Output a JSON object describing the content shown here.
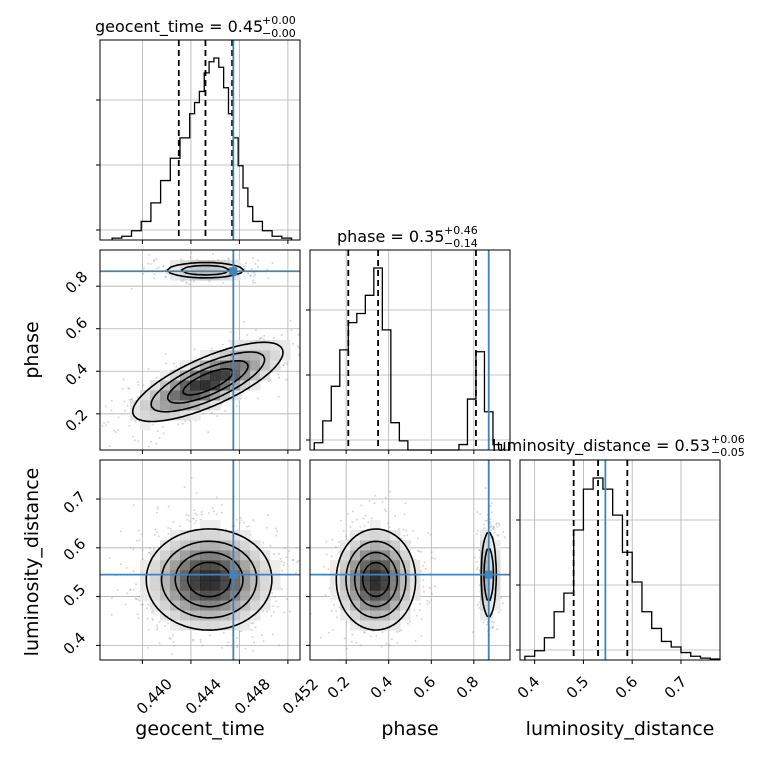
{
  "chart_data": {
    "type": "corner",
    "parameters": [
      "geocent_time",
      "phase",
      "luminosity_distance"
    ],
    "truth_color": "#4682b4",
    "truths": {
      "geocent_time": 0.4475,
      "phase": 0.87,
      "luminosity_distance": 0.545
    },
    "axis_ranges": {
      "geocent_time": [
        0.4365,
        0.453
      ],
      "phase": [
        0.03,
        0.97
      ],
      "luminosity_distance": [
        0.37,
        0.78
      ]
    },
    "grid": true,
    "titles": {
      "geocent_time": {
        "label": "geocent_time = 0.45",
        "plus": "+0.00",
        "minus": "−0.00"
      },
      "phase": {
        "label": "phase = 0.35",
        "plus": "+0.46",
        "minus": "−0.14"
      },
      "luminosity_distance": {
        "label": "luminosity_distance = 0.53",
        "plus": "+0.06",
        "minus": "−0.05"
      }
    },
    "ticks": {
      "geocent_time": {
        "values": [
          0.44,
          0.444,
          0.448,
          0.452
        ],
        "labels": [
          "0.440",
          "0.444",
          "0.448",
          "0.452"
        ]
      },
      "phase_x": {
        "values": [
          0.2,
          0.4,
          0.6,
          0.8
        ],
        "labels": [
          "0.2",
          "0.4",
          "0.6",
          "0.8"
        ]
      },
      "phase_y": {
        "values": [
          0.2,
          0.4,
          0.6,
          0.8
        ],
        "labels": [
          "0.2",
          "0.4",
          "0.6",
          "0.8"
        ]
      },
      "luminosity_distance_x": {
        "values": [
          0.4,
          0.5,
          0.6,
          0.7
        ],
        "labels": [
          "0.4",
          "0.5",
          "0.6",
          "0.7"
        ]
      },
      "luminosity_distance_y": {
        "values": [
          0.4,
          0.5,
          0.6,
          0.7
        ],
        "labels": [
          "0.4",
          "0.5",
          "0.6",
          "0.7"
        ]
      }
    },
    "quantiles": {
      "geocent_time": [
        0.443,
        0.4452,
        0.4474
      ],
      "phase": [
        0.21,
        0.35,
        0.81
      ],
      "luminosity_distance": [
        0.48,
        0.53,
        0.59
      ]
    },
    "histograms": {
      "geocent_time": {
        "edges": [
          0.4375,
          0.4383,
          0.4391,
          0.4399,
          0.4407,
          0.4415,
          0.4423,
          0.4431,
          0.4439,
          0.4443,
          0.4447,
          0.4451,
          0.4455,
          0.4459,
          0.4463,
          0.4467,
          0.4471,
          0.4475,
          0.4479,
          0.4483,
          0.4487,
          0.4491,
          0.4499,
          0.4507,
          0.4515,
          0.4523
        ],
        "counts": [
          0.01,
          0.02,
          0.05,
          0.1,
          0.2,
          0.32,
          0.44,
          0.55,
          0.68,
          0.74,
          0.8,
          0.9,
          0.96,
          0.98,
          0.93,
          0.82,
          0.68,
          0.55,
          0.4,
          0.28,
          0.18,
          0.1,
          0.05,
          0.02,
          0.01
        ]
      },
      "phase": {
        "edges": [
          0.05,
          0.09,
          0.13,
          0.17,
          0.21,
          0.25,
          0.29,
          0.33,
          0.37,
          0.41,
          0.45,
          0.49,
          0.53,
          0.57,
          0.61,
          0.65,
          0.69,
          0.73,
          0.77,
          0.81,
          0.85,
          0.89,
          0.93
        ],
        "counts": [
          0.04,
          0.16,
          0.35,
          0.55,
          0.7,
          0.75,
          0.85,
          1.0,
          0.66,
          0.15,
          0.05,
          0.0,
          0.0,
          0.0,
          0.0,
          0.0,
          0.0,
          0.03,
          0.28,
          0.54,
          0.21,
          0.03
        ]
      },
      "luminosity_distance": {
        "edges": [
          0.38,
          0.4,
          0.42,
          0.44,
          0.46,
          0.48,
          0.5,
          0.52,
          0.54,
          0.56,
          0.58,
          0.6,
          0.62,
          0.64,
          0.66,
          0.68,
          0.7,
          0.72,
          0.74,
          0.76,
          0.78
        ],
        "counts": [
          0.02,
          0.05,
          0.12,
          0.26,
          0.36,
          0.7,
          0.92,
          0.98,
          0.92,
          0.78,
          0.58,
          0.42,
          0.26,
          0.17,
          0.1,
          0.07,
          0.04,
          0.02,
          0.01,
          0.005
        ]
      }
    },
    "density": {
      "phase_vs_geocent_time": [
        {
          "x": 0.4452,
          "y": 0.875,
          "sx": 0.0018,
          "sy": 0.02,
          "w": 0.35
        },
        {
          "x": 0.4454,
          "y": 0.35,
          "sx": 0.003,
          "sy": 0.09,
          "w": 0.65,
          "rho": 0.75
        }
      ],
      "luminosity_distance_vs_geocent_time": [
        {
          "x": 0.4455,
          "y": 0.535,
          "sx": 0.0025,
          "sy": 0.05,
          "w": 1.0
        }
      ],
      "luminosity_distance_vs_phase": [
        {
          "x": 0.34,
          "y": 0.535,
          "sx": 0.09,
          "sy": 0.05,
          "w": 0.65
        },
        {
          "x": 0.87,
          "y": 0.545,
          "sx": 0.02,
          "sy": 0.05,
          "w": 0.35
        }
      ]
    }
  }
}
